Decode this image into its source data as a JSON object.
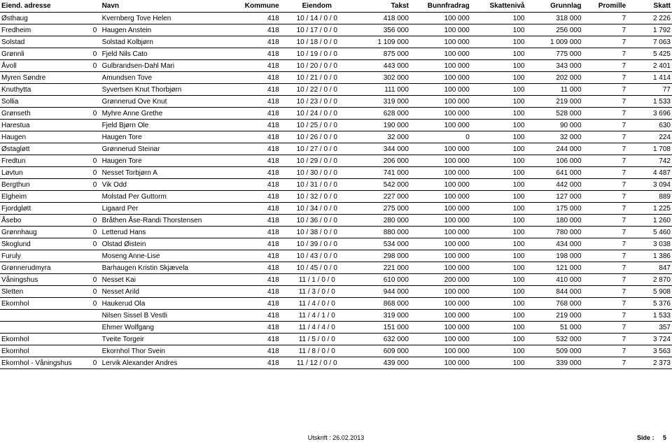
{
  "headers": {
    "adresse": "Eiend. adresse",
    "navn": "Navn",
    "kommune": "Kommune",
    "eiendom": "Eiendom",
    "takst": "Takst",
    "bunnfradrag": "Bunnfradrag",
    "skatteniva": "Skattenivå",
    "grunnlag": "Grunnlag",
    "promille": "Promille",
    "skatt": "Skatt"
  },
  "rows": [
    {
      "adresse": "Østhaug",
      "col2": "",
      "navn": "Kvernberg Tove Helen",
      "kommune": "418",
      "eiendom": "10 / 14 / 0 / 0",
      "takst": "418 000",
      "bunn": "100 000",
      "skniv": "100",
      "grunn": "318 000",
      "prom": "7",
      "skatt": "2 226"
    },
    {
      "adresse": "Fredheim",
      "col2": "0",
      "navn": "Haugen Anstein",
      "kommune": "418",
      "eiendom": "10 / 17 / 0 / 0",
      "takst": "356 000",
      "bunn": "100 000",
      "skniv": "100",
      "grunn": "256 000",
      "prom": "7",
      "skatt": "1 792"
    },
    {
      "adresse": "Solstad",
      "col2": "",
      "navn": "Solstad Kolbjørn",
      "kommune": "418",
      "eiendom": "10 / 18 / 0 / 0",
      "takst": "1 109 000",
      "bunn": "100 000",
      "skniv": "100",
      "grunn": "1 009 000",
      "prom": "7",
      "skatt": "7 063"
    },
    {
      "adresse": "Grønnli",
      "col2": "0",
      "navn": "Fjeld Nils Cato",
      "kommune": "418",
      "eiendom": "10 / 19 / 0 / 0",
      "takst": "875 000",
      "bunn": "100 000",
      "skniv": "100",
      "grunn": "775 000",
      "prom": "7",
      "skatt": "5 425"
    },
    {
      "adresse": "Åvoll",
      "col2": "0",
      "navn": "Gulbrandsen-Dahl Mari",
      "kommune": "418",
      "eiendom": "10 / 20 / 0 / 0",
      "takst": "443 000",
      "bunn": "100 000",
      "skniv": "100",
      "grunn": "343 000",
      "prom": "7",
      "skatt": "2 401"
    },
    {
      "adresse": "Myren Søndre",
      "col2": "",
      "navn": "Amundsen Tove",
      "kommune": "418",
      "eiendom": "10 / 21 / 0 / 0",
      "takst": "302 000",
      "bunn": "100 000",
      "skniv": "100",
      "grunn": "202 000",
      "prom": "7",
      "skatt": "1 414"
    },
    {
      "adresse": "Knuthytta",
      "col2": "",
      "navn": "Syvertsen Knut Thorbjørn",
      "kommune": "418",
      "eiendom": "10 / 22 / 0 / 0",
      "takst": "111 000",
      "bunn": "100 000",
      "skniv": "100",
      "grunn": "11 000",
      "prom": "7",
      "skatt": "77"
    },
    {
      "adresse": "Sollia",
      "col2": "",
      "navn": "Grønnerud Ove Knut",
      "kommune": "418",
      "eiendom": "10 / 23 / 0 / 0",
      "takst": "319 000",
      "bunn": "100 000",
      "skniv": "100",
      "grunn": "219 000",
      "prom": "7",
      "skatt": "1 533"
    },
    {
      "adresse": "Grønseth",
      "col2": "0",
      "navn": "Myhre Anne Grethe",
      "kommune": "418",
      "eiendom": "10 / 24 / 0 / 0",
      "takst": "628 000",
      "bunn": "100 000",
      "skniv": "100",
      "grunn": "528 000",
      "prom": "7",
      "skatt": "3 696"
    },
    {
      "adresse": "Harestua",
      "col2": "",
      "navn": "Fjeld Bjørn Ole",
      "kommune": "418",
      "eiendom": "10 / 25 / 0 / 0",
      "takst": "190 000",
      "bunn": "100 000",
      "skniv": "100",
      "grunn": "90 000",
      "prom": "7",
      "skatt": "630"
    },
    {
      "adresse": "Haugen",
      "col2": "",
      "navn": "Haugen Tore",
      "kommune": "418",
      "eiendom": "10 / 26 / 0 / 0",
      "takst": "32 000",
      "bunn": "0",
      "skniv": "100",
      "grunn": "32 000",
      "prom": "7",
      "skatt": "224"
    },
    {
      "adresse": "Østagløtt",
      "col2": "",
      "navn": "Grønnerud Steinar",
      "kommune": "418",
      "eiendom": "10 / 27 / 0 / 0",
      "takst": "344 000",
      "bunn": "100 000",
      "skniv": "100",
      "grunn": "244 000",
      "prom": "7",
      "skatt": "1 708"
    },
    {
      "adresse": "Fredtun",
      "col2": "0",
      "navn": "Haugen Tore",
      "kommune": "418",
      "eiendom": "10 / 29 / 0 / 0",
      "takst": "206 000",
      "bunn": "100 000",
      "skniv": "100",
      "grunn": "106 000",
      "prom": "7",
      "skatt": "742"
    },
    {
      "adresse": "Løvtun",
      "col2": "0",
      "navn": "Nesset Torbjørn A",
      "kommune": "418",
      "eiendom": "10 / 30 / 0 / 0",
      "takst": "741 000",
      "bunn": "100 000",
      "skniv": "100",
      "grunn": "641 000",
      "prom": "7",
      "skatt": "4 487"
    },
    {
      "adresse": "Bergthun",
      "col2": "0",
      "navn": "Vik Odd",
      "kommune": "418",
      "eiendom": "10 / 31 / 0 / 0",
      "takst": "542 000",
      "bunn": "100 000",
      "skniv": "100",
      "grunn": "442 000",
      "prom": "7",
      "skatt": "3 094"
    },
    {
      "adresse": "Elgheim",
      "col2": "",
      "navn": "Molstad Per Guttorm",
      "kommune": "418",
      "eiendom": "10 / 32 / 0 / 0",
      "takst": "227 000",
      "bunn": "100 000",
      "skniv": "100",
      "grunn": "127 000",
      "prom": "7",
      "skatt": "889"
    },
    {
      "adresse": "Fjordgløtt",
      "col2": "",
      "navn": "Ligaard Per",
      "kommune": "418",
      "eiendom": "10 / 34 / 0 / 0",
      "takst": "275 000",
      "bunn": "100 000",
      "skniv": "100",
      "grunn": "175 000",
      "prom": "7",
      "skatt": "1 225"
    },
    {
      "adresse": "Åsebo",
      "col2": "0",
      "navn": "Bråthen Åse-Randi Thorstensen",
      "kommune": "418",
      "eiendom": "10 / 36 / 0 / 0",
      "takst": "280 000",
      "bunn": "100 000",
      "skniv": "100",
      "grunn": "180 000",
      "prom": "7",
      "skatt": "1 260"
    },
    {
      "adresse": "Grønnhaug",
      "col2": "0",
      "navn": "Letterud Hans",
      "kommune": "418",
      "eiendom": "10 / 38 / 0 / 0",
      "takst": "880 000",
      "bunn": "100 000",
      "skniv": "100",
      "grunn": "780 000",
      "prom": "7",
      "skatt": "5 460"
    },
    {
      "adresse": "Skoglund",
      "col2": "0",
      "navn": "Olstad Øistein",
      "kommune": "418",
      "eiendom": "10 / 39 / 0 / 0",
      "takst": "534 000",
      "bunn": "100 000",
      "skniv": "100",
      "grunn": "434 000",
      "prom": "7",
      "skatt": "3 038"
    },
    {
      "adresse": "Furuly",
      "col2": "",
      "navn": "Moseng Anne-Lise",
      "kommune": "418",
      "eiendom": "10 / 43 / 0 / 0",
      "takst": "298 000",
      "bunn": "100 000",
      "skniv": "100",
      "grunn": "198 000",
      "prom": "7",
      "skatt": "1 386"
    },
    {
      "adresse": "Grønnerudmyra",
      "col2": "",
      "navn": "Barhaugen Kristin Skjævela",
      "kommune": "418",
      "eiendom": "10 / 45 / 0 / 0",
      "takst": "221 000",
      "bunn": "100 000",
      "skniv": "100",
      "grunn": "121 000",
      "prom": "7",
      "skatt": "847"
    },
    {
      "adresse": "Våningshus",
      "col2": "0",
      "navn": "Nesset Kai",
      "kommune": "418",
      "eiendom": "11 / 1 / 0 / 0",
      "takst": "610 000",
      "bunn": "200 000",
      "skniv": "100",
      "grunn": "410 000",
      "prom": "7",
      "skatt": "2 870"
    },
    {
      "adresse": "Sletten",
      "col2": "0",
      "navn": "Nesset Arild",
      "kommune": "418",
      "eiendom": "11 / 3 / 0 / 0",
      "takst": "944 000",
      "bunn": "100 000",
      "skniv": "100",
      "grunn": "844 000",
      "prom": "7",
      "skatt": "5 908"
    },
    {
      "adresse": "Ekornhol",
      "col2": "0",
      "navn": "Haukerud Ola",
      "kommune": "418",
      "eiendom": "11 / 4 / 0 / 0",
      "takst": "868 000",
      "bunn": "100 000",
      "skniv": "100",
      "grunn": "768 000",
      "prom": "7",
      "skatt": "5 376"
    },
    {
      "adresse": "",
      "col2": "",
      "navn": "Nilsen Sissel B Vestli",
      "kommune": "418",
      "eiendom": "11 / 4 / 1 / 0",
      "takst": "319 000",
      "bunn": "100 000",
      "skniv": "100",
      "grunn": "219 000",
      "prom": "7",
      "skatt": "1 533"
    },
    {
      "adresse": "",
      "col2": "",
      "navn": "Ehmer Wolfgang",
      "kommune": "418",
      "eiendom": "11 / 4 / 4 / 0",
      "takst": "151 000",
      "bunn": "100 000",
      "skniv": "100",
      "grunn": "51 000",
      "prom": "7",
      "skatt": "357"
    },
    {
      "adresse": "Ekornhol",
      "col2": "",
      "navn": "Tveite Torgeir",
      "kommune": "418",
      "eiendom": "11 / 5 / 0 / 0",
      "takst": "632 000",
      "bunn": "100 000",
      "skniv": "100",
      "grunn": "532 000",
      "prom": "7",
      "skatt": "3 724"
    },
    {
      "adresse": "Ekornhol",
      "col2": "",
      "navn": "Ekornhol Thor Svein",
      "kommune": "418",
      "eiendom": "11 / 8 / 0 / 0",
      "takst": "609 000",
      "bunn": "100 000",
      "skniv": "100",
      "grunn": "509 000",
      "prom": "7",
      "skatt": "3 563"
    },
    {
      "adresse": "Ekornhol - Våningshus",
      "col2": "0",
      "navn": "Lervik Alexander Andres",
      "kommune": "418",
      "eiendom": "11 / 12 / 0 / 0",
      "takst": "439 000",
      "bunn": "100 000",
      "skniv": "100",
      "grunn": "339 000",
      "prom": "7",
      "skatt": "2 373"
    }
  ],
  "footer": {
    "utskrift": "Utskrift : 26.02.2013",
    "side_label": "Side :",
    "side_num": "5"
  }
}
